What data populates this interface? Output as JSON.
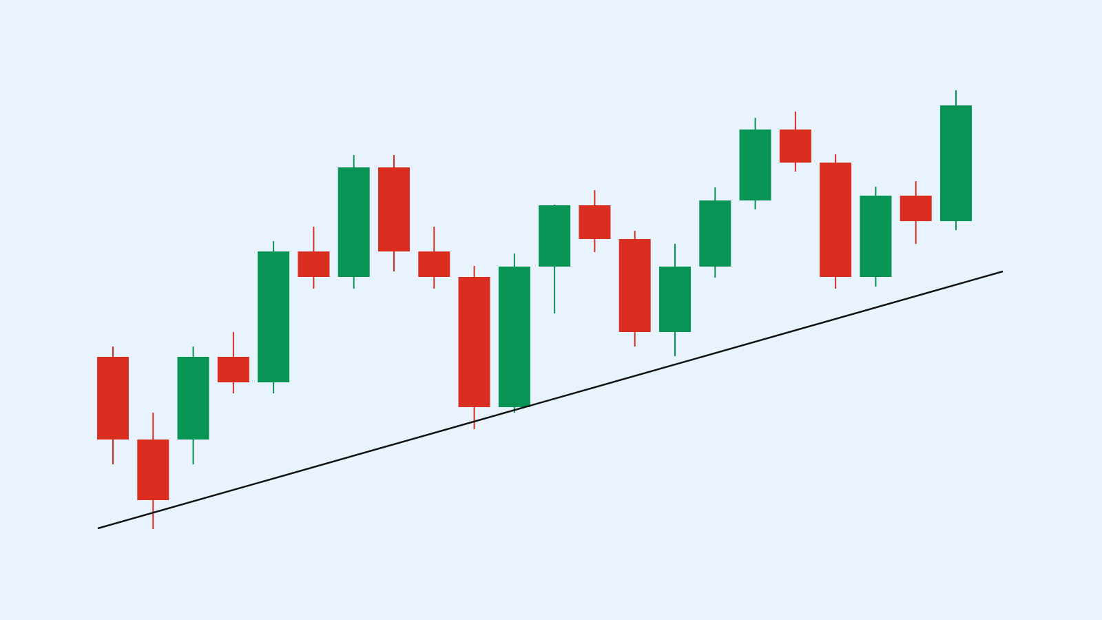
{
  "chart_data": {
    "type": "candlestick",
    "title": "",
    "xlabel": "",
    "ylabel": "",
    "grid": false,
    "legend": "none",
    "ylim": [
      0,
      900
    ],
    "colors": {
      "background": "#e8f3fe",
      "bullish": "#079454",
      "bearish": "#d92e20",
      "trendline": "#111111"
    },
    "candles": [
      {
        "open": 382,
        "high": 397,
        "low": 226,
        "close": 262
      },
      {
        "open": 262,
        "high": 301,
        "low": 132,
        "close": 174
      },
      {
        "open": 262,
        "high": 397,
        "low": 226,
        "close": 382
      },
      {
        "open": 382,
        "high": 418,
        "low": 329,
        "close": 345
      },
      {
        "open": 345,
        "high": 550,
        "low": 329,
        "close": 535
      },
      {
        "open": 535,
        "high": 571,
        "low": 481,
        "close": 498
      },
      {
        "open": 498,
        "high": 675,
        "low": 481,
        "close": 657
      },
      {
        "open": 657,
        "high": 675,
        "low": 506,
        "close": 535
      },
      {
        "open": 535,
        "high": 571,
        "low": 481,
        "close": 498
      },
      {
        "open": 498,
        "high": 514,
        "low": 277,
        "close": 309
      },
      {
        "open": 309,
        "high": 532,
        "low": 301,
        "close": 513
      },
      {
        "open": 513,
        "high": 603,
        "low": 445,
        "close": 602
      },
      {
        "open": 602,
        "high": 624,
        "low": 534,
        "close": 553
      },
      {
        "open": 553,
        "high": 565,
        "low": 397,
        "close": 418
      },
      {
        "open": 418,
        "high": 546,
        "low": 383,
        "close": 513
      },
      {
        "open": 513,
        "high": 628,
        "low": 497,
        "close": 609
      },
      {
        "open": 609,
        "high": 729,
        "low": 596,
        "close": 712
      },
      {
        "open": 712,
        "high": 738,
        "low": 651,
        "close": 664
      },
      {
        "open": 664,
        "high": 676,
        "low": 481,
        "close": 498
      },
      {
        "open": 498,
        "high": 629,
        "low": 484,
        "close": 616
      },
      {
        "open": 616,
        "high": 637,
        "low": 546,
        "close": 579
      },
      {
        "open": 579,
        "high": 769,
        "low": 566,
        "close": 747
      }
    ],
    "trendline": {
      "start": {
        "index": 0,
        "value": 133
      },
      "end": {
        "index": 21,
        "value": 506
      }
    }
  }
}
